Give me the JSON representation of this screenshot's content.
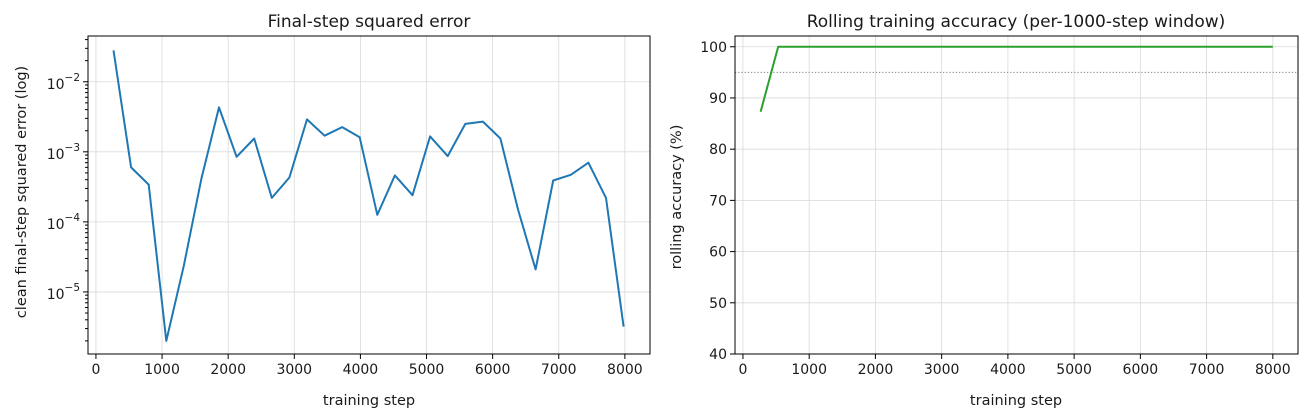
{
  "chart_data": [
    {
      "type": "line",
      "title": "Final-step squared error",
      "xlabel": "training step",
      "ylabel": "clean final-step squared error (log)",
      "yscale": "log",
      "xlim": [
        -120,
        8380
      ],
      "ylim": [
        1.3e-06,
        0.045
      ],
      "grid": true,
      "x_ticks": [
        0,
        1000,
        2000,
        3000,
        4000,
        5000,
        6000,
        7000,
        8000
      ],
      "y_ticks": [
        {
          "base": "10",
          "exp": "−5",
          "value": 1e-05
        },
        {
          "base": "10",
          "exp": "−4",
          "value": 0.0001
        },
        {
          "base": "10",
          "exp": "−3",
          "value": 0.001
        },
        {
          "base": "10",
          "exp": "−2",
          "value": 0.01
        }
      ],
      "series": [
        {
          "color": "#1f77b4",
          "x": [
            266,
            532,
            798,
            1064,
            1330,
            1596,
            1862,
            2128,
            2394,
            2660,
            2926,
            3192,
            3458,
            3724,
            3990,
            4256,
            4522,
            4788,
            5054,
            5320,
            5586,
            5852,
            6118,
            6384,
            6650,
            6916,
            7182,
            7448,
            7714,
            7980
          ],
          "y": [
            0.028,
            0.0006,
            0.00034,
            2e-06,
            2.4e-05,
            0.00042,
            0.0043,
            0.00085,
            0.00155,
            0.00022,
            0.00043,
            0.0029,
            0.0017,
            0.00225,
            0.00161,
            0.000126,
            0.00046,
            0.00024,
            0.00166,
            0.00087,
            0.0025,
            0.0027,
            0.00155,
            0.00015,
            2.1e-05,
            0.00039,
            0.00047,
            0.0007,
            0.00022,
            3.2e-06
          ]
        }
      ]
    },
    {
      "type": "line",
      "title": "Rolling training accuracy (per-1000-step window)",
      "xlabel": "training step",
      "ylabel": "rolling accuracy (%)",
      "yscale": "linear",
      "xlim": [
        -120,
        8380
      ],
      "ylim": [
        40,
        102.1
      ],
      "grid": true,
      "x_ticks": [
        0,
        1000,
        2000,
        3000,
        4000,
        5000,
        6000,
        7000,
        8000
      ],
      "y_ticks": [
        40,
        50,
        60,
        70,
        80,
        90,
        100
      ],
      "reference_line": {
        "y": 95,
        "style": "dotted",
        "color": "#808080"
      },
      "series": [
        {
          "color": "#2ca02c",
          "x": [
            266,
            532,
            8000
          ],
          "y": [
            87.3,
            100,
            100
          ]
        }
      ]
    }
  ]
}
